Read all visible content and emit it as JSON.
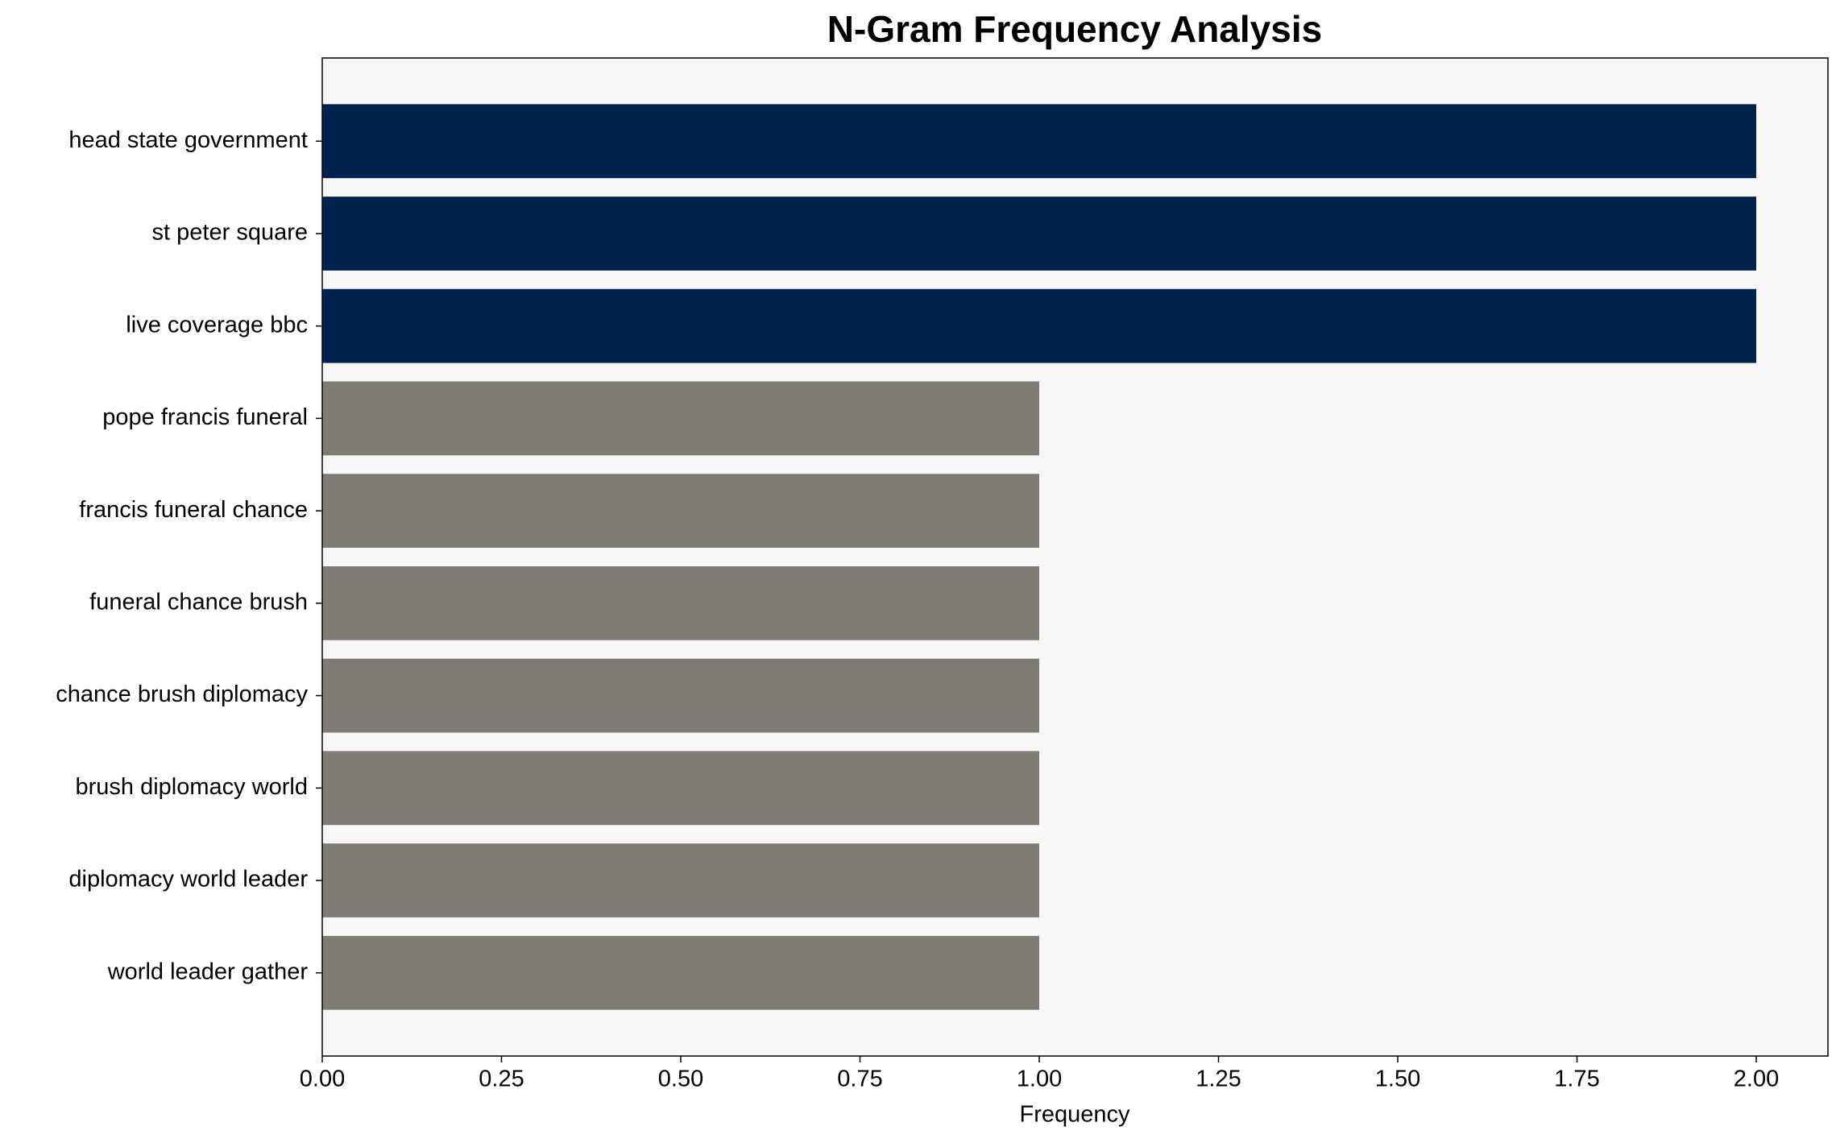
{
  "chart_data": {
    "type": "barh",
    "title": "N-Gram Frequency Analysis",
    "x_label": "Frequency",
    "categories": [
      "head state government",
      "st peter square",
      "live coverage bbc",
      "pope francis funeral",
      "francis funeral chance",
      "funeral chance brush",
      "chance brush diplomacy",
      "brush diplomacy world",
      "diplomacy world leader",
      "world leader gather"
    ],
    "values": [
      2,
      2,
      2,
      1,
      1,
      1,
      1,
      1,
      1,
      1
    ],
    "colors": [
      "#00224e",
      "#00224e",
      "#00224e",
      "#7f7c75",
      "#7f7c75",
      "#7f7c75",
      "#7f7c75",
      "#7f7c75",
      "#7f7c75",
      "#7f7c75"
    ],
    "xlim": [
      0,
      2.1
    ],
    "xticks": [
      {
        "value": 0,
        "label": "0.00"
      },
      {
        "value": 0.25,
        "label": "0.25"
      },
      {
        "value": 0.5,
        "label": "0.50"
      },
      {
        "value": 0.75,
        "label": "0.75"
      },
      {
        "value": 1,
        "label": "1.00"
      },
      {
        "value": 1.25,
        "label": "1.25"
      },
      {
        "value": 1.5,
        "label": "1.50"
      },
      {
        "value": 1.75,
        "label": "1.75"
      },
      {
        "value": 2,
        "label": "2.00"
      }
    ],
    "grid": false
  }
}
